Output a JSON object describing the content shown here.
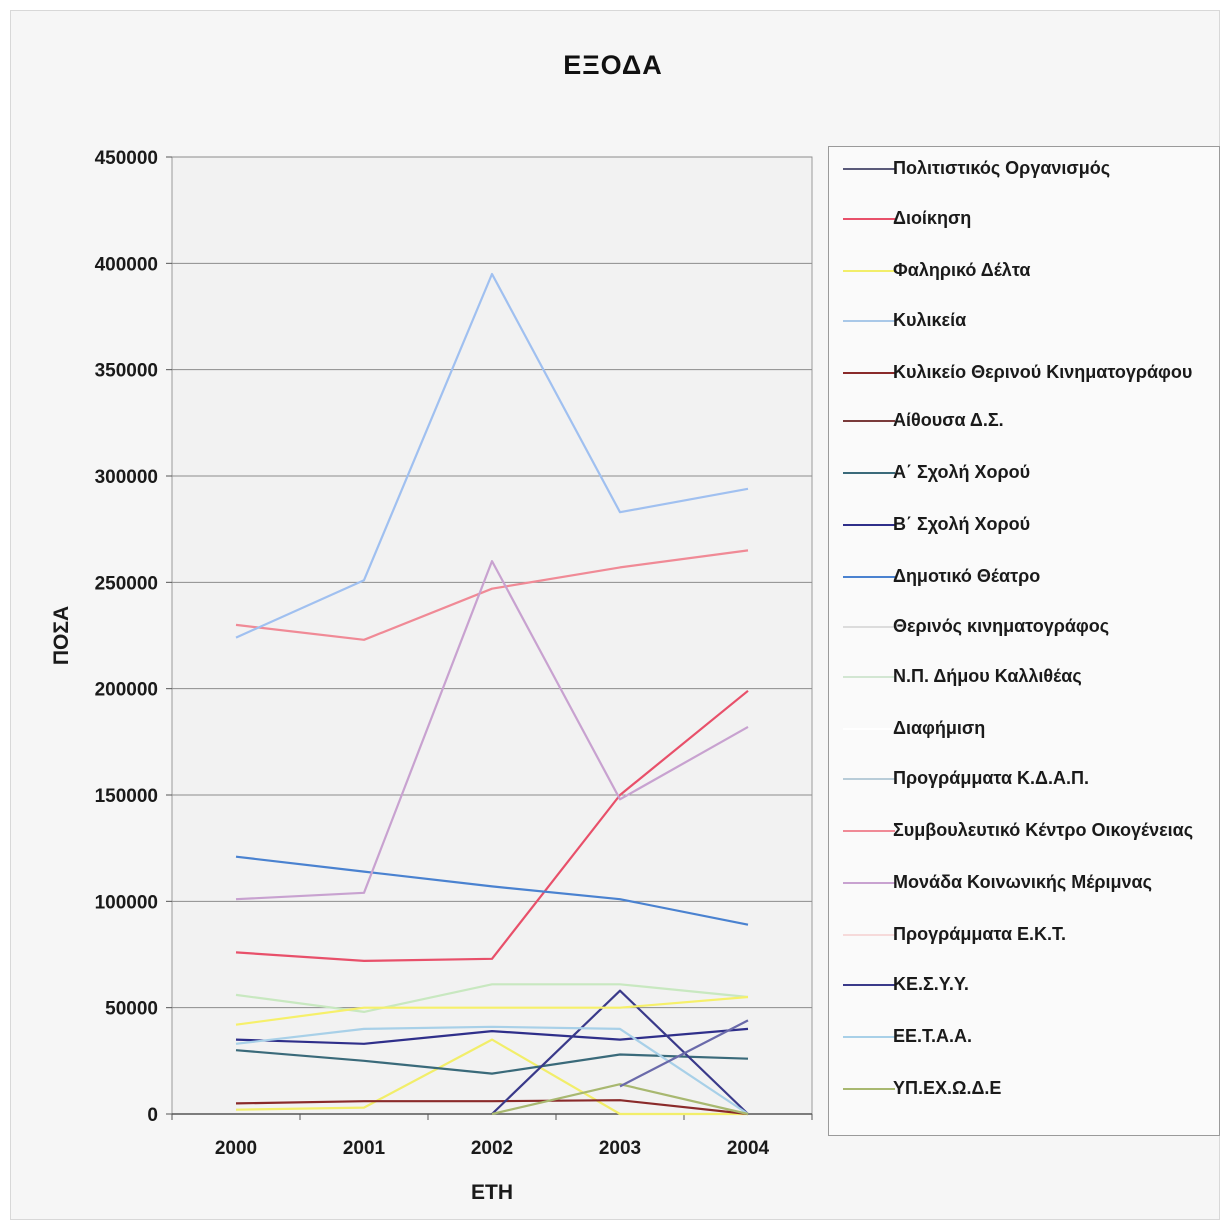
{
  "chart_data": {
    "type": "line",
    "title": "ΕΞΟΔΑ",
    "xlabel": "ΕΤΗ",
    "ylabel": "ΠΟΣΑ",
    "categories": [
      "2000",
      "2001",
      "2002",
      "2003",
      "2004"
    ],
    "ylim": [
      0,
      450000
    ],
    "yticks": [
      0,
      50000,
      100000,
      150000,
      200000,
      250000,
      300000,
      350000,
      400000,
      450000
    ],
    "ytick_labels": [
      "0",
      "50000",
      "100000",
      "150000",
      "200000",
      "250000",
      "300000",
      "350000",
      "400000",
      "450000"
    ],
    "grid": true,
    "legend_position": "right",
    "series": [
      {
        "name": "Πολιτιστικός Οργανισμός",
        "color": "#5a5a7a",
        "values": [
          null,
          null,
          null,
          null,
          null
        ]
      },
      {
        "name": "Διοίκηση",
        "color": "#e8506a",
        "values": [
          76000,
          72000,
          73000,
          150000,
          199000
        ]
      },
      {
        "name": "Φαληρικό Δέλτα",
        "color": "#f2ee6a",
        "values": [
          2000,
          3000,
          35000,
          0,
          0
        ]
      },
      {
        "name": "Κυλικεία",
        "color": "#a9c8e8",
        "values": [
          null,
          null,
          null,
          null,
          null
        ]
      },
      {
        "name": "Κυλικείο Θερινού Κινηματογράφου",
        "color": "#8a2a2a",
        "values": [
          5000,
          6000,
          6000,
          6500,
          0
        ]
      },
      {
        "name": "Αίθουσα Δ.Σ.",
        "color": "#7a3a3a",
        "values": [
          null,
          null,
          null,
          null,
          null
        ]
      },
      {
        "name": "Α΄ Σχολή Χορού",
        "color": "#3a6a7a",
        "values": [
          30000,
          25000,
          19000,
          28000,
          26000
        ]
      },
      {
        "name": "Β΄ Σχολή Χορού",
        "color": "#2f2f8a",
        "values": [
          35000,
          33000,
          39000,
          35000,
          40000
        ]
      },
      {
        "name": "Δημοτικό Θέατρο",
        "color": "#4a82d0",
        "values": [
          121000,
          114000,
          107000,
          101000,
          89000
        ]
      },
      {
        "name": "Θερινός κινηματογράφος",
        "color": "#dcdcdc",
        "values": [
          null,
          null,
          null,
          null,
          null
        ]
      },
      {
        "name": "Ν.Π. Δήμου Καλλιθέας",
        "color": "#d2e6d2",
        "values": [
          null,
          null,
          null,
          null,
          null
        ]
      },
      {
        "name": "Διαφήμιση",
        "color": "#ffffff",
        "values": [
          null,
          null,
          null,
          null,
          null
        ]
      },
      {
        "name": "Προγράμματα Κ.Δ.Α.Π.",
        "color": "#b8ccd8",
        "values": [
          null,
          null,
          null,
          null,
          null
        ]
      },
      {
        "name": "Συμβουλευτικό Κέντρο Οικογένειας",
        "color": "#f08a96",
        "values": [
          230000,
          223000,
          247000,
          257000,
          265000
        ]
      },
      {
        "name": "Μονάδα Κοινωνικής Μέριμνας",
        "color": "#c8a2d0",
        "values": [
          101000,
          104000,
          260000,
          148000,
          182000
        ]
      },
      {
        "name": "Προγράμματα Ε.Κ.Τ.",
        "color": "#f6dada",
        "values": [
          null,
          null,
          null,
          null,
          null
        ]
      },
      {
        "name": "ΚΕ.Σ.Υ.Υ.",
        "color": "#3a3a8a",
        "values": [
          null,
          null,
          0,
          58000,
          0
        ]
      },
      {
        "name": "ΕΕ.Τ.Α.Α.",
        "color": "#a8d0e8",
        "values": [
          33000,
          40000,
          41000,
          40000,
          0
        ]
      },
      {
        "name": "ΥΠ.ΕΧ.Ω.Δ.Ε",
        "color": "#a8b870",
        "values": [
          null,
          null,
          0,
          14000,
          0
        ]
      },
      {
        "name": "",
        "color": "#a0c0f0",
        "values": [
          224000,
          251000,
          395000,
          283000,
          294000
        ]
      },
      {
        "name": "",
        "color": "#c8e8c0",
        "values": [
          56000,
          48000,
          61000,
          61000,
          55000
        ]
      },
      {
        "name": "",
        "color": "#f6f06a",
        "values": [
          42000,
          50000,
          50000,
          50000,
          55000
        ]
      },
      {
        "name": "",
        "color": "#6a6aaa",
        "values": [
          null,
          null,
          null,
          13000,
          44000
        ]
      }
    ]
  }
}
